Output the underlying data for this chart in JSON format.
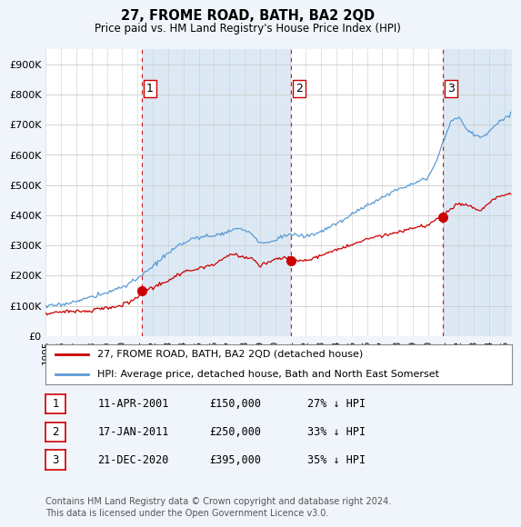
{
  "title": "27, FROME ROAD, BATH, BA2 2QD",
  "subtitle": "Price paid vs. HM Land Registry's House Price Index (HPI)",
  "ylabel_ticks": [
    "£0",
    "£100K",
    "£200K",
    "£300K",
    "£400K",
    "£500K",
    "£600K",
    "£700K",
    "£800K",
    "£900K"
  ],
  "ytick_values": [
    0,
    100000,
    200000,
    300000,
    400000,
    500000,
    600000,
    700000,
    800000,
    900000
  ],
  "ylim": [
    0,
    950000
  ],
  "sale_dates_num": [
    2001.27,
    2011.04,
    2020.97
  ],
  "sale_prices": [
    150000,
    250000,
    395000
  ],
  "sale_labels": [
    "1",
    "2",
    "3"
  ],
  "vline_color": "#cc0000",
  "sale_marker_color": "#cc0000",
  "hpi_color": "#5b9bd5",
  "price_color": "#cc0000",
  "shading_color": "#dce9f5",
  "legend_entries": [
    "27, FROME ROAD, BATH, BA2 2QD (detached house)",
    "HPI: Average price, detached house, Bath and North East Somerset"
  ],
  "table_rows": [
    [
      "1",
      "11-APR-2001",
      "£150,000",
      "27% ↓ HPI"
    ],
    [
      "2",
      "17-JAN-2011",
      "£250,000",
      "33% ↓ HPI"
    ],
    [
      "3",
      "21-DEC-2020",
      "£395,000",
      "35% ↓ HPI"
    ]
  ],
  "footnote": "Contains HM Land Registry data © Crown copyright and database right 2024.\nThis data is licensed under the Open Government Licence v3.0.",
  "background_color": "#f0f4fb",
  "plot_bg_color": "#ffffff",
  "xlim_start": 1995.0,
  "xlim_end": 2025.5,
  "xtick_years": [
    1995,
    1996,
    1997,
    1998,
    1999,
    2000,
    2001,
    2002,
    2003,
    2004,
    2005,
    2006,
    2007,
    2008,
    2009,
    2010,
    2011,
    2012,
    2013,
    2014,
    2015,
    2016,
    2017,
    2018,
    2019,
    2020,
    2021,
    2022,
    2023,
    2024,
    2025
  ]
}
